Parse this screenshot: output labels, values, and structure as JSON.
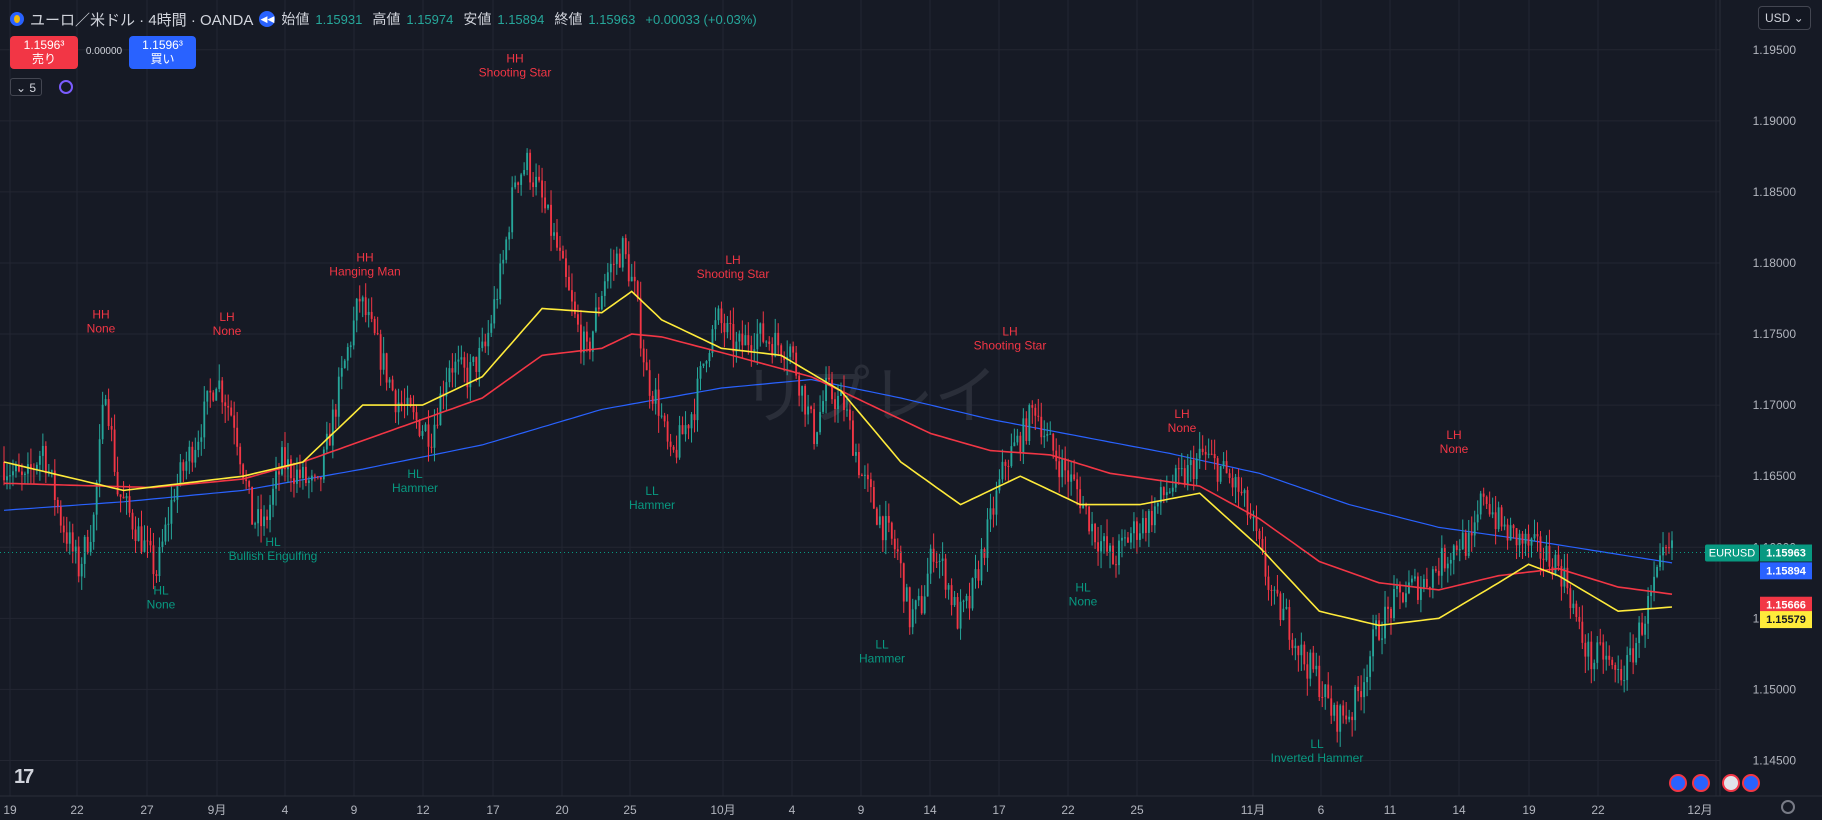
{
  "legend": {
    "title": "ユーロ／米ドル · 4時間 · OANDA",
    "open_label": "始値",
    "open": "1.15931",
    "high_label": "高値",
    "high": "1.15974",
    "low_label": "安値",
    "low": "1.15894",
    "close_label": "終値",
    "close": "1.15963",
    "change": "+0.00033 (+0.03%)"
  },
  "trade": {
    "sell_price": "1.1596³",
    "sell_label": "売り",
    "spread": "0.00000",
    "buy_price": "1.1596³",
    "buy_label": "買い"
  },
  "indicator_count": "⌄ 5",
  "currency": "USD ⌄",
  "watermark": "リプレイ",
  "colors": {
    "up": "#26a69a",
    "down": "#f23645",
    "ema_fast": "#ffeb3b",
    "ema_mid": "#f23645",
    "ema_slow": "#2962ff",
    "bg": "#161a25"
  },
  "chart_data": {
    "type": "candlestick",
    "symbol": "EURUSD",
    "timeframe": "4時間",
    "ylim": [
      1.1425,
      1.1985
    ],
    "y_ticks": [
      "1.19500",
      "1.19000",
      "1.18500",
      "1.18000",
      "1.17500",
      "1.17000",
      "1.16500",
      "1.16000",
      "1.15500",
      "1.15000",
      "1.14500"
    ],
    "x_ticks": [
      "19",
      "22",
      "27",
      "9月",
      "4",
      "9",
      "12",
      "17",
      "20",
      "25",
      "10月",
      "4",
      "9",
      "14",
      "17",
      "22",
      "25",
      "11月",
      "6",
      "11",
      "14",
      "19",
      "22",
      "12月"
    ],
    "price_tags": [
      {
        "label": "EURUSD",
        "value": "1.15963",
        "color": "#089981"
      },
      {
        "value": "1.15894",
        "color": "#2962ff"
      },
      {
        "value": "1.15666",
        "color": "#f23645"
      },
      {
        "value": "1.15579",
        "color": "#ffeb3b"
      }
    ],
    "annotations": [
      {
        "line1": "HH",
        "line2": "None",
        "type": "high",
        "price": 1.174
      },
      {
        "line1": "HL",
        "line2": "None",
        "type": "low",
        "price": 1.1578
      },
      {
        "line1": "LH",
        "line2": "None",
        "type": "high",
        "price": 1.1738
      },
      {
        "line1": "HL",
        "line2": "Bullish Engulfing",
        "type": "low",
        "price": 1.1612
      },
      {
        "line1": "HH",
        "line2": "Hanging Man",
        "type": "high",
        "price": 1.178
      },
      {
        "line1": "HL",
        "line2": "Hammer",
        "type": "low",
        "price": 1.166
      },
      {
        "line1": "HH",
        "line2": "Shooting Star",
        "type": "high",
        "price": 1.192
      },
      {
        "line1": "LL",
        "line2": "Hammer",
        "type": "low",
        "price": 1.1648
      },
      {
        "line1": "LH",
        "line2": "Shooting Star",
        "type": "high",
        "price": 1.1778
      },
      {
        "line1": "LL",
        "line2": "Hammer",
        "type": "low",
        "price": 1.154
      },
      {
        "line1": "LH",
        "line2": "Shooting Star",
        "type": "high",
        "price": 1.1728
      },
      {
        "line1": "HL",
        "line2": "None",
        "type": "low",
        "price": 1.158
      },
      {
        "line1": "LH",
        "line2": "None",
        "type": "high",
        "price": 1.167
      },
      {
        "line1": "LL",
        "line2": "Inverted Hammer",
        "type": "low",
        "price": 1.147
      },
      {
        "line1": "LH",
        "line2": "None",
        "type": "high",
        "price": 1.1655
      }
    ],
    "price_path": [
      [
        0,
        1.166
      ],
      [
        8,
        1.1645
      ],
      [
        14,
        1.167
      ],
      [
        20,
        1.162
      ],
      [
        26,
        1.1585
      ],
      [
        31,
        1.162
      ],
      [
        35,
        1.1715
      ],
      [
        39,
        1.164
      ],
      [
        46,
        1.161
      ],
      [
        52,
        1.1582
      ],
      [
        58,
        1.164
      ],
      [
        66,
        1.168
      ],
      [
        72,
        1.172
      ],
      [
        78,
        1.169
      ],
      [
        84,
        1.162
      ],
      [
        88,
        1.1615
      ],
      [
        94,
        1.166
      ],
      [
        100,
        1.165
      ],
      [
        106,
        1.164
      ],
      [
        114,
        1.172
      ],
      [
        120,
        1.1775
      ],
      [
        126,
        1.174
      ],
      [
        132,
        1.1705
      ],
      [
        138,
        1.169
      ],
      [
        144,
        1.168
      ],
      [
        150,
        1.173
      ],
      [
        156,
        1.172
      ],
      [
        162,
        1.174
      ],
      [
        168,
        1.18
      ],
      [
        172,
        1.186
      ],
      [
        176,
        1.187
      ],
      [
        180,
        1.185
      ],
      [
        186,
        1.181
      ],
      [
        192,
        1.176
      ],
      [
        196,
        1.1735
      ],
      [
        202,
        1.179
      ],
      [
        208,
        1.181
      ],
      [
        212,
        1.178
      ],
      [
        216,
        1.172
      ],
      [
        220,
        1.17
      ],
      [
        224,
        1.166
      ],
      [
        228,
        1.168
      ],
      [
        232,
        1.17
      ],
      [
        236,
        1.174
      ],
      [
        240,
        1.176
      ],
      [
        246,
        1.174
      ],
      [
        252,
        1.175
      ],
      [
        258,
        1.1745
      ],
      [
        264,
        1.174
      ],
      [
        268,
        1.171
      ],
      [
        272,
        1.168
      ],
      [
        276,
        1.171
      ],
      [
        282,
        1.17
      ],
      [
        288,
        1.165
      ],
      [
        294,
        1.162
      ],
      [
        300,
        1.1595
      ],
      [
        304,
        1.155
      ],
      [
        308,
        1.156
      ],
      [
        312,
        1.16
      ],
      [
        316,
        1.158
      ],
      [
        320,
        1.155
      ],
      [
        324,
        1.156
      ],
      [
        330,
        1.161
      ],
      [
        336,
        1.166
      ],
      [
        342,
        1.168
      ],
      [
        346,
        1.17
      ],
      [
        350,
        1.1675
      ],
      [
        354,
        1.166
      ],
      [
        360,
        1.164
      ],
      [
        366,
        1.161
      ],
      [
        372,
        1.159
      ],
      [
        378,
        1.161
      ],
      [
        384,
        1.162
      ],
      [
        390,
        1.164
      ],
      [
        396,
        1.165
      ],
      [
        402,
        1.1665
      ],
      [
        408,
        1.1655
      ],
      [
        414,
        1.164
      ],
      [
        418,
        1.162
      ],
      [
        422,
        1.159
      ],
      [
        426,
        1.156
      ],
      [
        430,
        1.155
      ],
      [
        436,
        1.152
      ],
      [
        440,
        1.151
      ],
      [
        446,
        1.148
      ],
      [
        452,
        1.1485
      ],
      [
        456,
        1.151
      ],
      [
        460,
        1.154
      ],
      [
        466,
        1.156
      ],
      [
        470,
        1.157
      ],
      [
        476,
        1.1575
      ],
      [
        480,
        1.1585
      ],
      [
        484,
        1.1595
      ],
      [
        488,
        1.1605
      ],
      [
        492,
        1.16
      ],
      [
        496,
        1.164
      ],
      [
        500,
        1.162
      ],
      [
        504,
        1.161
      ],
      [
        508,
        1.1605
      ],
      [
        512,
        1.16
      ],
      [
        516,
        1.1595
      ],
      [
        520,
        1.159
      ],
      [
        524,
        1.1575
      ],
      [
        528,
        1.154
      ],
      [
        532,
        1.152
      ],
      [
        536,
        1.1525
      ],
      [
        540,
        1.151
      ],
      [
        544,
        1.1515
      ],
      [
        548,
        1.154
      ],
      [
        552,
        1.1565
      ],
      [
        556,
        1.159
      ],
      [
        558,
        1.1596
      ]
    ],
    "ema_fast": [
      [
        0,
        1.166
      ],
      [
        40,
        1.164
      ],
      [
        80,
        1.165
      ],
      [
        100,
        1.166
      ],
      [
        120,
        1.17
      ],
      [
        140,
        1.17
      ],
      [
        160,
        1.172
      ],
      [
        180,
        1.1768
      ],
      [
        200,
        1.1765
      ],
      [
        210,
        1.178
      ],
      [
        220,
        1.176
      ],
      [
        240,
        1.174
      ],
      [
        260,
        1.1735
      ],
      [
        280,
        1.171
      ],
      [
        300,
        1.166
      ],
      [
        320,
        1.163
      ],
      [
        340,
        1.165
      ],
      [
        360,
        1.163
      ],
      [
        380,
        1.163
      ],
      [
        400,
        1.1638
      ],
      [
        420,
        1.16
      ],
      [
        440,
        1.1555
      ],
      [
        460,
        1.1545
      ],
      [
        480,
        1.155
      ],
      [
        500,
        1.1575
      ],
      [
        510,
        1.1588
      ],
      [
        520,
        1.158
      ],
      [
        540,
        1.1555
      ],
      [
        558,
        1.1558
      ]
    ],
    "ema_mid": [
      [
        0,
        1.1645
      ],
      [
        50,
        1.1642
      ],
      [
        80,
        1.1648
      ],
      [
        100,
        1.166
      ],
      [
        140,
        1.169
      ],
      [
        160,
        1.1705
      ],
      [
        180,
        1.1735
      ],
      [
        200,
        1.174
      ],
      [
        210,
        1.175
      ],
      [
        220,
        1.1748
      ],
      [
        240,
        1.1737
      ],
      [
        270,
        1.172
      ],
      [
        290,
        1.17
      ],
      [
        310,
        1.168
      ],
      [
        330,
        1.1668
      ],
      [
        350,
        1.1665
      ],
      [
        370,
        1.1652
      ],
      [
        400,
        1.1643
      ],
      [
        420,
        1.162
      ],
      [
        440,
        1.159
      ],
      [
        460,
        1.1575
      ],
      [
        480,
        1.157
      ],
      [
        500,
        1.158
      ],
      [
        520,
        1.1585
      ],
      [
        540,
        1.1572
      ],
      [
        558,
        1.1567
      ]
    ],
    "ema_slow": [
      [
        0,
        1.1626
      ],
      [
        40,
        1.1632
      ],
      [
        80,
        1.164
      ],
      [
        120,
        1.1655
      ],
      [
        160,
        1.1672
      ],
      [
        200,
        1.1697
      ],
      [
        240,
        1.1712
      ],
      [
        270,
        1.1718
      ],
      [
        300,
        1.1705
      ],
      [
        330,
        1.169
      ],
      [
        360,
        1.1678
      ],
      [
        390,
        1.1666
      ],
      [
        420,
        1.1652
      ],
      [
        450,
        1.163
      ],
      [
        480,
        1.1614
      ],
      [
        510,
        1.1605
      ],
      [
        540,
        1.1595
      ],
      [
        558,
        1.1589
      ]
    ]
  }
}
